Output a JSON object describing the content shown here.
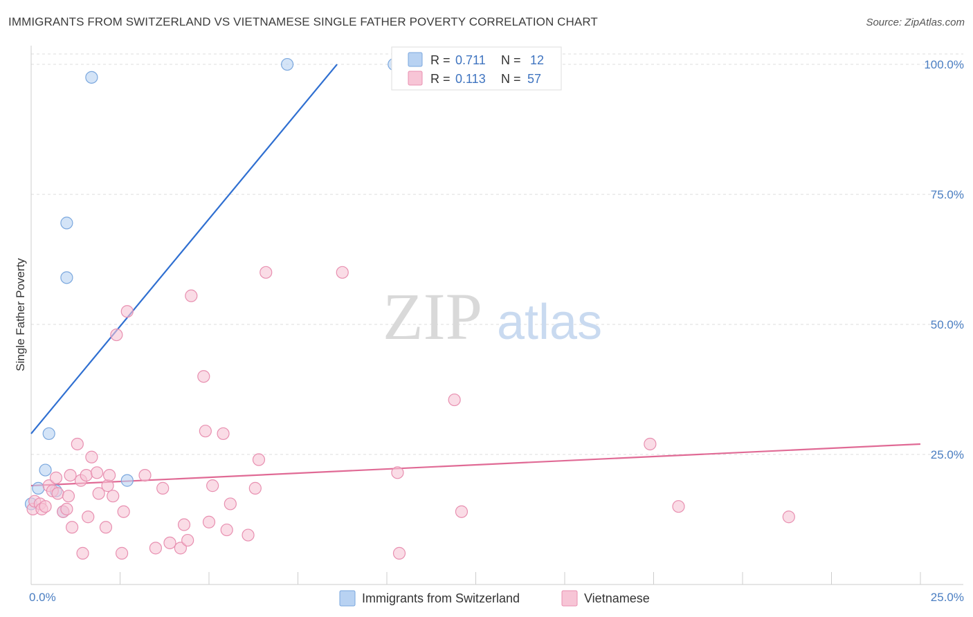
{
  "title": "IMMIGRANTS FROM SWITZERLAND VS VIETNAMESE SINGLE FATHER POVERTY CORRELATION CHART",
  "source": "Source: ZipAtlas.com",
  "watermark": {
    "zip": "ZIP",
    "atlas": "atlas"
  },
  "colors": {
    "blue_fill": "#b8d2f2",
    "blue_stroke": "#7aa7de",
    "blue_line": "#2f6fd1",
    "pink_fill": "#f7c5d6",
    "pink_stroke": "#e88fb0",
    "pink_line": "#e06a95",
    "grid": "#dddddd",
    "axis_text": "#4a7ec2"
  },
  "legend_top": {
    "series": [
      {
        "r_label": "R = ",
        "r_value": "0.711",
        "n_label": "N = ",
        "n_value": "12"
      },
      {
        "r_label": "R = ",
        "r_value": "0.113",
        "n_label": "N = ",
        "n_value": "57"
      }
    ]
  },
  "legend_bottom": [
    "Immigrants from Switzerland",
    "Vietnamese"
  ],
  "chart_data": {
    "type": "scatter",
    "title": "IMMIGRANTS FROM SWITZERLAND VS VIETNAMESE SINGLE FATHER POVERTY CORRELATION CHART",
    "xlabel": "",
    "ylabel": "Single Father Poverty",
    "xlim": [
      0,
      25
    ],
    "ylim": [
      0,
      102
    ],
    "x_tick_labels": [
      "0.0%",
      "25.0%"
    ],
    "y_ticks": [
      25,
      50,
      75,
      100
    ],
    "y_tick_labels": [
      "25.0%",
      "50.0%",
      "75.0%",
      "100.0%"
    ],
    "legend_position": "top-center",
    "series": [
      {
        "name": "Immigrants from Switzerland",
        "r": 0.711,
        "n": 12,
        "points": [
          [
            0.0,
            15.5
          ],
          [
            0.2,
            18.5
          ],
          [
            0.4,
            22.0
          ],
          [
            0.5,
            29.0
          ],
          [
            0.7,
            18.0
          ],
          [
            0.9,
            14.0
          ],
          [
            1.0,
            59.0
          ],
          [
            1.0,
            69.5
          ],
          [
            1.7,
            97.5
          ],
          [
            2.7,
            20.0
          ],
          [
            7.2,
            100.0
          ],
          [
            10.2,
            100.0
          ]
        ],
        "trend": {
          "x": [
            0.0,
            8.6
          ],
          "y": [
            29.0,
            100.0
          ]
        }
      },
      {
        "name": "Vietnamese",
        "r": 0.113,
        "n": 57,
        "points": [
          [
            0.05,
            14.5
          ],
          [
            0.1,
            16.0
          ],
          [
            0.25,
            15.5
          ],
          [
            0.3,
            14.5
          ],
          [
            0.4,
            15.0
          ],
          [
            0.5,
            19.0
          ],
          [
            0.6,
            18.0
          ],
          [
            0.7,
            20.5
          ],
          [
            0.75,
            17.5
          ],
          [
            0.9,
            14.0
          ],
          [
            1.0,
            14.5
          ],
          [
            1.05,
            17.0
          ],
          [
            1.1,
            21.0
          ],
          [
            1.15,
            11.0
          ],
          [
            1.3,
            27.0
          ],
          [
            1.4,
            20.0
          ],
          [
            1.45,
            6.0
          ],
          [
            1.55,
            21.0
          ],
          [
            1.6,
            13.0
          ],
          [
            1.7,
            24.5
          ],
          [
            1.85,
            21.5
          ],
          [
            1.9,
            17.5
          ],
          [
            2.1,
            11.0
          ],
          [
            2.15,
            19.0
          ],
          [
            2.2,
            21.0
          ],
          [
            2.3,
            17.0
          ],
          [
            2.4,
            48.0
          ],
          [
            2.55,
            6.0
          ],
          [
            2.6,
            14.0
          ],
          [
            2.7,
            52.5
          ],
          [
            3.2,
            21.0
          ],
          [
            3.5,
            7.0
          ],
          [
            3.7,
            18.5
          ],
          [
            3.9,
            8.0
          ],
          [
            4.2,
            7.0
          ],
          [
            4.3,
            11.5
          ],
          [
            4.4,
            8.5
          ],
          [
            4.5,
            55.5
          ],
          [
            4.85,
            40.0
          ],
          [
            4.9,
            29.5
          ],
          [
            5.0,
            12.0
          ],
          [
            5.1,
            19.0
          ],
          [
            5.4,
            29.0
          ],
          [
            5.5,
            10.5
          ],
          [
            5.6,
            15.5
          ],
          [
            6.1,
            9.5
          ],
          [
            6.3,
            18.5
          ],
          [
            6.4,
            24.0
          ],
          [
            6.6,
            60.0
          ],
          [
            8.75,
            60.0
          ],
          [
            10.3,
            21.5
          ],
          [
            10.35,
            6.0
          ],
          [
            11.9,
            35.5
          ],
          [
            12.1,
            14.0
          ],
          [
            17.4,
            27.0
          ],
          [
            18.2,
            15.0
          ],
          [
            21.3,
            13.0
          ]
        ],
        "trend": {
          "x": [
            0.0,
            25.0
          ],
          "y": [
            19.0,
            27.0
          ]
        }
      }
    ]
  }
}
